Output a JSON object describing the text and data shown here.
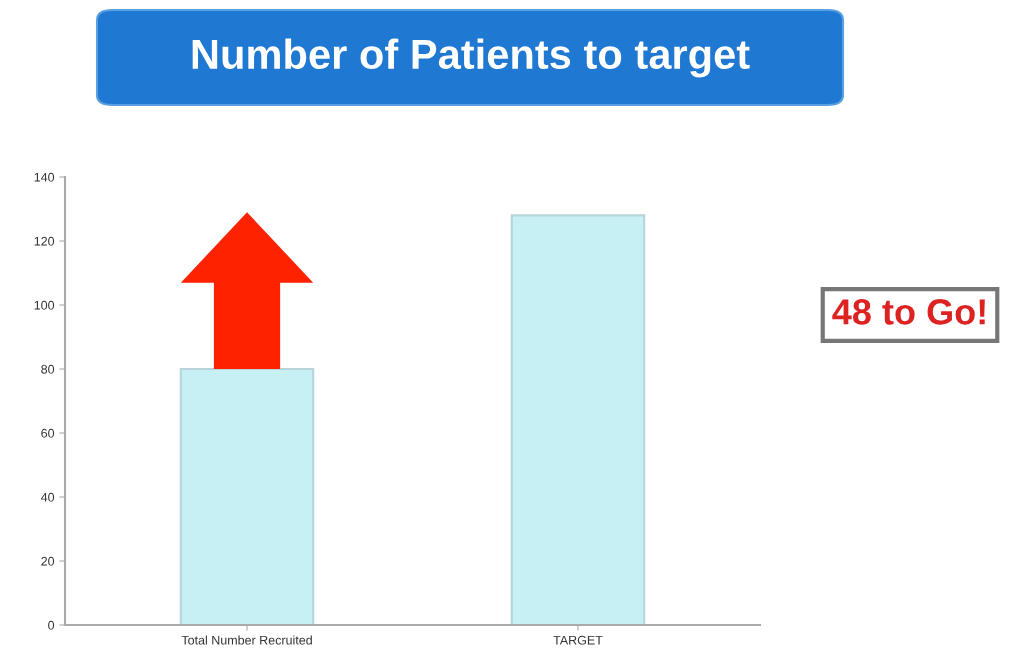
{
  "chart_data": {
    "type": "bar",
    "title": "Number of Patients to target",
    "categories": [
      "Total Number Recruited",
      "TARGET"
    ],
    "values": [
      80,
      128
    ],
    "color": "#c6f0f3",
    "ylim": [
      0,
      140
    ],
    "yticks": [
      0,
      20,
      40,
      60,
      80,
      100,
      120,
      140
    ],
    "annotations": [
      "48 to Go!"
    ]
  }
}
